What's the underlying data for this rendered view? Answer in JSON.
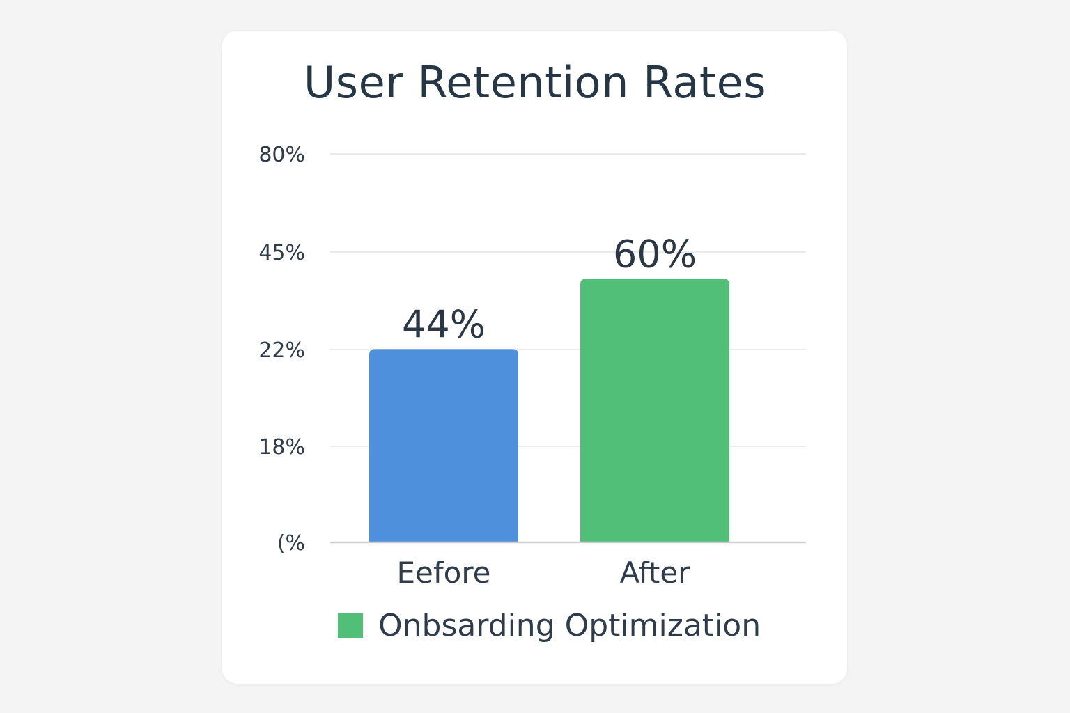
{
  "chart_data": {
    "type": "bar",
    "title": "User Retention Rates",
    "categories": [
      "Eefore",
      "After"
    ],
    "values": [
      44,
      60
    ],
    "value_labels": [
      "44%",
      "60%"
    ],
    "bar_colors": [
      "#4f90dd",
      "#51bf78"
    ],
    "y_tick_labels": [
      "(%",
      "18%",
      "22%",
      "45%",
      "80%"
    ],
    "grid": true,
    "legend": {
      "label": "Onbsarding Optimization",
      "color": "#51bf78",
      "placement": "bottom"
    },
    "xlabel": "",
    "ylabel": ""
  }
}
